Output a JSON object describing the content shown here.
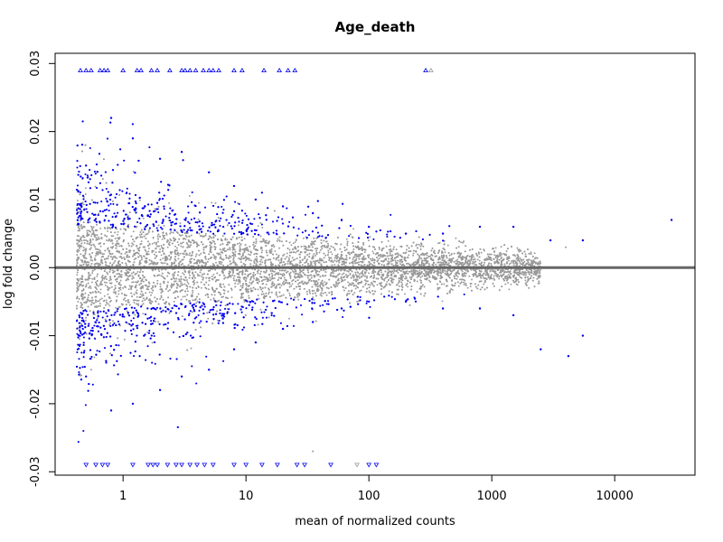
{
  "chart_data": {
    "type": "scatter",
    "title": "Age_death",
    "xlabel": "mean of normalized counts",
    "ylabel": "log fold change",
    "x_scale": "log10",
    "xlim": [
      0.28,
      45000
    ],
    "ylim": [
      -0.0305,
      0.0315
    ],
    "x_ticks": [
      1,
      10,
      100,
      1000,
      10000
    ],
    "x_tick_labels": [
      "1",
      "10",
      "100",
      "1000",
      "10000"
    ],
    "y_ticks": [
      -0.03,
      -0.02,
      -0.01,
      0.0,
      0.01,
      0.02,
      0.03
    ],
    "y_tick_labels": [
      "-0.03",
      "-0.02",
      "-0.01",
      "0.00",
      "0.01",
      "0.02",
      "0.03"
    ],
    "reference_line": {
      "y": 0.0,
      "color": "#666666"
    },
    "grid": false,
    "legend": "none",
    "colors": {
      "significant": "#0000ee",
      "not_significant": "#999999"
    },
    "series": [
      {
        "values": [
          [
            0.45,
            0.029
          ],
          [
            0.5,
            0.029
          ],
          [
            0.55,
            0.029
          ],
          [
            0.65,
            0.029
          ],
          [
            0.7,
            0.029
          ],
          [
            0.75,
            0.029
          ],
          [
            1.0,
            0.029
          ],
          [
            1.3,
            0.029
          ],
          [
            1.4,
            0.029
          ],
          [
            1.7,
            0.029
          ],
          [
            1.9,
            0.029
          ],
          [
            2.4,
            0.029
          ],
          [
            3.0,
            0.029
          ],
          [
            3.2,
            0.029
          ],
          [
            3.5,
            0.029
          ],
          [
            3.9,
            0.029
          ],
          [
            4.5,
            0.029
          ],
          [
            5.0,
            0.029
          ],
          [
            5.4,
            0.029
          ],
          [
            6.0,
            0.029
          ],
          [
            8.0,
            0.029
          ],
          [
            9.3,
            0.029
          ],
          [
            14.0,
            0.029
          ],
          [
            18.7,
            0.029
          ],
          [
            22.0,
            0.029
          ],
          [
            25.0,
            0.029
          ],
          [
            290.0,
            0.029
          ],
          [
            0.5,
            -0.029
          ],
          [
            0.6,
            -0.029
          ],
          [
            0.68,
            -0.029
          ],
          [
            0.75,
            -0.029
          ],
          [
            1.2,
            -0.029
          ],
          [
            1.6,
            -0.029
          ],
          [
            1.75,
            -0.029
          ],
          [
            1.9,
            -0.029
          ],
          [
            2.3,
            -0.029
          ],
          [
            2.7,
            -0.029
          ],
          [
            3.0,
            -0.029
          ],
          [
            3.5,
            -0.029
          ],
          [
            4.0,
            -0.029
          ],
          [
            4.6,
            -0.029
          ],
          [
            5.4,
            -0.029
          ],
          [
            8.0,
            -0.029
          ],
          [
            10.0,
            -0.029
          ],
          [
            13.5,
            -0.029
          ],
          [
            18.0,
            -0.029
          ],
          [
            26.0,
            -0.029
          ],
          [
            30.0,
            -0.029
          ],
          [
            49.0,
            -0.029
          ],
          [
            100.0,
            -0.029
          ],
          [
            115.0,
            -0.029
          ]
        ]
      },
      {
        "values": [
          [
            0.5,
            0.015
          ],
          [
            0.8,
            0.022
          ],
          [
            1.2,
            0.019
          ],
          [
            2.0,
            0.016
          ],
          [
            3.0,
            0.017
          ],
          [
            5.0,
            0.014
          ],
          [
            8.0,
            0.012
          ],
          [
            12.0,
            0.01
          ],
          [
            20.0,
            0.009
          ],
          [
            35.0,
            0.008
          ],
          [
            60.0,
            0.007
          ],
          [
            100.0,
            0.006
          ],
          [
            200.0,
            0.005
          ],
          [
            400.0,
            0.005
          ],
          [
            800.0,
            0.006
          ],
          [
            1500.0,
            0.006
          ],
          [
            3000.0,
            0.004
          ],
          [
            5500.0,
            0.004
          ],
          [
            29000.0,
            0.007
          ],
          [
            0.5,
            -0.016
          ],
          [
            0.8,
            -0.021
          ],
          [
            1.2,
            -0.02
          ],
          [
            2.0,
            -0.018
          ],
          [
            3.0,
            -0.016
          ],
          [
            5.0,
            -0.015
          ],
          [
            8.0,
            -0.012
          ],
          [
            12.0,
            -0.011
          ],
          [
            20.0,
            -0.009
          ],
          [
            35.0,
            -0.008
          ],
          [
            60.0,
            -0.006
          ],
          [
            100.0,
            -0.005
          ],
          [
            200.0,
            -0.005
          ],
          [
            400.0,
            -0.006
          ],
          [
            800.0,
            -0.006
          ],
          [
            1500.0,
            -0.007
          ],
          [
            2500.0,
            -0.012
          ],
          [
            4200.0,
            -0.013
          ],
          [
            5500.0,
            -0.01
          ]
        ]
      },
      {
        "values": [
          [
            320.0,
            0.029
          ],
          [
            0.55,
            -0.015
          ],
          [
            0.6,
            0.014
          ],
          [
            80.0,
            -0.029
          ],
          [
            35.0,
            -0.027
          ],
          [
            0.5,
            0.004
          ],
          [
            1.0,
            -0.003
          ],
          [
            5.0,
            0.002
          ],
          [
            30.0,
            -0.001
          ],
          [
            200.0,
            0.001
          ],
          [
            700.0,
            -0.001
          ],
          [
            2000.0,
            -0.003
          ],
          [
            4000.0,
            0.003
          ],
          [
            7500.0,
            0.0
          ]
        ]
      }
    ]
  }
}
